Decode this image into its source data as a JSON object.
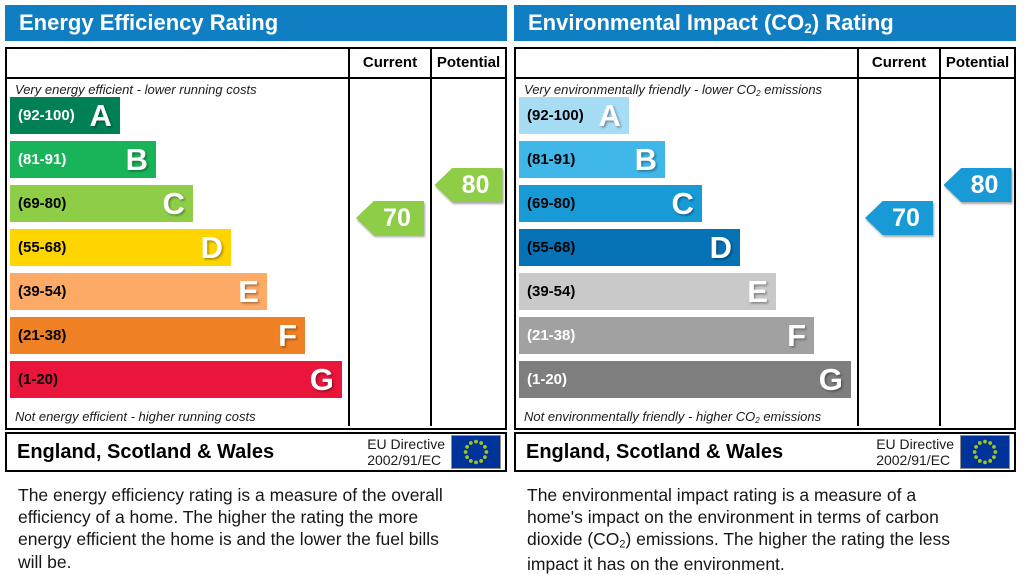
{
  "panels": [
    {
      "title_parts": [
        "Energy Efficiency Rating",
        "",
        ""
      ],
      "header_color": "#0f7ec3",
      "columns": {
        "current": "Current",
        "potential": "Potential"
      },
      "top_note_parts": [
        "Very energy efficient - lower running costs",
        "",
        ""
      ],
      "bottom_note_parts": [
        "Not energy efficient - higher running costs",
        "",
        ""
      ],
      "bands": [
        {
          "letter": "A",
          "range": "(92-100)",
          "color": "#008054",
          "label_color": "#ffffff",
          "width_pct": 32.5
        },
        {
          "letter": "B",
          "range": "(81-91)",
          "color": "#19b459",
          "label_color": "#ffffff",
          "width_pct": 43.2
        },
        {
          "letter": "C",
          "range": "(69-80)",
          "color": "#8dce46",
          "label_color": "#000000",
          "width_pct": 54.1
        },
        {
          "letter": "D",
          "range": "(55-68)",
          "color": "#ffd500",
          "label_color": "#000000",
          "width_pct": 65.4
        },
        {
          "letter": "E",
          "range": "(39-54)",
          "color": "#fcaa65",
          "label_color": "#000000",
          "width_pct": 76.0
        },
        {
          "letter": "F",
          "range": "(21-38)",
          "color": "#ef8023",
          "label_color": "#000000",
          "width_pct": 87.3
        },
        {
          "letter": "G",
          "range": "(1-20)",
          "color": "#e9153b",
          "label_color": "#000000",
          "width_pct": 98.2
        }
      ],
      "current": {
        "value": "70",
        "color": "#8dce46"
      },
      "potential": {
        "value": "80",
        "color": "#8dce46"
      },
      "footer": {
        "region": "England, Scotland & Wales",
        "directive_line1": "EU Directive",
        "directive_line2": "2002/91/EC",
        "flag_bg": "#003399",
        "flag_stars": "#9fc41f"
      },
      "description_parts": [
        "The energy efficiency rating is a measure of the overall efficiency of a home. The higher the rating the more energy efficient the home is and the lower the fuel bills will be.",
        "",
        ""
      ]
    },
    {
      "title_parts": [
        "Environmental Impact (CO",
        "2",
        ") Rating"
      ],
      "header_color": "#0f7ec3",
      "columns": {
        "current": "Current",
        "potential": "Potential"
      },
      "top_note_parts": [
        "Very environmentally friendly - lower CO",
        "2",
        " emissions"
      ],
      "bottom_note_parts": [
        "Not environmentally friendly - higher CO",
        "2",
        " emissions"
      ],
      "bands": [
        {
          "letter": "A",
          "range": "(92-100)",
          "color": "#a6dcf4",
          "label_color": "#000000",
          "width_pct": 32.5
        },
        {
          "letter": "B",
          "range": "(81-91)",
          "color": "#3fb7e8",
          "label_color": "#000000",
          "width_pct": 43.2
        },
        {
          "letter": "C",
          "range": "(69-80)",
          "color": "#189ad6",
          "label_color": "#000000",
          "width_pct": 54.1
        },
        {
          "letter": "D",
          "range": "(55-68)",
          "color": "#0672b6",
          "label_color": "#000000",
          "width_pct": 65.4
        },
        {
          "letter": "E",
          "range": "(39-54)",
          "color": "#c9c9c9",
          "label_color": "#000000",
          "width_pct": 76.0
        },
        {
          "letter": "F",
          "range": "(21-38)",
          "color": "#a1a1a1",
          "label_color": "#ffffff",
          "width_pct": 87.3
        },
        {
          "letter": "G",
          "range": "(1-20)",
          "color": "#7e7e7e",
          "label_color": "#ffffff",
          "width_pct": 98.2
        }
      ],
      "current": {
        "value": "70",
        "color": "#189ad6"
      },
      "potential": {
        "value": "80",
        "color": "#189ad6"
      },
      "footer": {
        "region": "England, Scotland & Wales",
        "directive_line1": "EU Directive",
        "directive_line2": "2002/91/EC",
        "flag_bg": "#003399",
        "flag_stars": "#9fc41f"
      },
      "description_parts": [
        "The environmental impact rating is a measure of a home's impact on the environment in terms of carbon dioxide (CO",
        "2",
        ") emissions. The higher the rating the less impact it has on the environment."
      ]
    }
  ],
  "chart_data": [
    {
      "type": "bar",
      "title": "Energy Efficiency Rating",
      "orientation": "horizontal",
      "categories": [
        "A",
        "B",
        "C",
        "D",
        "E",
        "F",
        "G"
      ],
      "band_ranges": [
        "92-100",
        "81-91",
        "69-80",
        "55-68",
        "39-54",
        "21-38",
        "1-20"
      ],
      "band_relative_lengths_pct": [
        32.5,
        43.2,
        54.1,
        65.4,
        76.0,
        87.3,
        98.2
      ],
      "current_rating": 70,
      "current_band": "C",
      "potential_rating": 80,
      "potential_band": "C",
      "top_annotation": "Very energy efficient - lower running costs",
      "bottom_annotation": "Not energy efficient - higher running costs",
      "region": "England, Scotland & Wales",
      "directive": "EU Directive 2002/91/EC"
    },
    {
      "type": "bar",
      "title": "Environmental Impact (CO2) Rating",
      "orientation": "horizontal",
      "categories": [
        "A",
        "B",
        "C",
        "D",
        "E",
        "F",
        "G"
      ],
      "band_ranges": [
        "92-100",
        "81-91",
        "69-80",
        "55-68",
        "39-54",
        "21-38",
        "1-20"
      ],
      "band_relative_lengths_pct": [
        32.5,
        43.2,
        54.1,
        65.4,
        76.0,
        87.3,
        98.2
      ],
      "current_rating": 70,
      "current_band": "C",
      "potential_rating": 80,
      "potential_band": "C",
      "top_annotation": "Very environmentally friendly - lower CO2 emissions",
      "bottom_annotation": "Not environmentally friendly - higher CO2 emissions",
      "region": "England, Scotland & Wales",
      "directive": "EU Directive 2002/91/EC"
    }
  ]
}
